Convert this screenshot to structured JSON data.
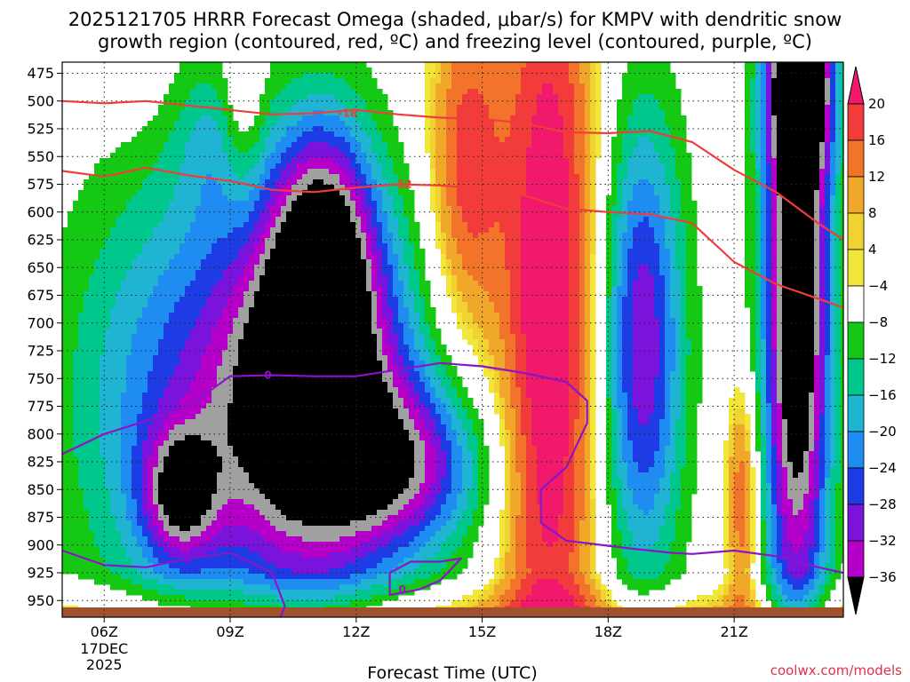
{
  "title_line1": "2025121705 HRRR Forecast Omega (shaded, μbar/s) for KMPV with dendritic snow",
  "title_line2": "growth region (contoured, red, ºC) and freezing level (contoured, purple, ºC)",
  "x_axis_title": "Forecast Time (UTC)",
  "credit": "coolwx.com/models",
  "chart_data": {
    "type": "heatmap",
    "title": "2025121705 HRRR Forecast Omega (shaded, μbar/s) for KMPV with dendritic snow growth region (contoured, red, ºC) and freezing level (contoured, purple, ºC)",
    "xlabel": "Forecast Time (UTC)",
    "ylabel": "",
    "x_hours_range": [
      5,
      23.6
    ],
    "y_levels_hPa": [
      475,
      500,
      525,
      550,
      575,
      600,
      625,
      650,
      675,
      700,
      725,
      750,
      775,
      800,
      825,
      850,
      875,
      900,
      925,
      950
    ],
    "y_range_hPa": [
      465,
      965
    ],
    "x_ticks": [
      {
        "hour": 6,
        "label": "06Z",
        "sublabel1": "17DEC",
        "sublabel2": "2025"
      },
      {
        "hour": 9,
        "label": "09Z"
      },
      {
        "hour": 12,
        "label": "12Z"
      },
      {
        "hour": 15,
        "label": "15Z"
      },
      {
        "hour": 18,
        "label": "18Z"
      },
      {
        "hour": 21,
        "label": "21Z"
      }
    ],
    "grid": true,
    "colorbar": {
      "labels": [
        "20",
        "16",
        "12",
        "8",
        "4",
        "−4",
        "−8",
        "−12",
        "−16",
        "−20",
        "−24",
        "−28",
        "−32",
        "−36"
      ],
      "colors": [
        "#f0196b",
        "#f23c3c",
        "#f2742a",
        "#f0a72a",
        "#f0d330",
        "#f2e63a",
        "#ffffff",
        "#14c814",
        "#00c88c",
        "#1eb4d2",
        "#1e8cf0",
        "#1e3ce6",
        "#7a14dc",
        "#b400c8",
        "#a0a0a0",
        "#000000"
      ]
    },
    "omega_blobs": [
      {
        "name": "early-ascent",
        "x": 7.6,
        "y": 770,
        "rx": 2.6,
        "ry": 210,
        "peak": -18
      },
      {
        "name": "early-ascent-core",
        "x": 7.8,
        "y": 855,
        "rx": 0.9,
        "ry": 60,
        "peak": -24
      },
      {
        "name": "upper-ascent",
        "x": 8.6,
        "y": 530,
        "rx": 1.0,
        "ry": 80,
        "peak": -8
      },
      {
        "name": "main-ascent",
        "x": 11.0,
        "y": 770,
        "rx": 2.3,
        "ry": 175,
        "peak": -46
      },
      {
        "name": "main-ascent-flank",
        "x": 13.3,
        "y": 830,
        "rx": 1.9,
        "ry": 75,
        "peak": -22
      },
      {
        "name": "upper-mid-ascent",
        "x": 11.2,
        "y": 630,
        "rx": 1.2,
        "ry": 120,
        "peak": -28
      },
      {
        "name": "ascent-18z",
        "x": 18.8,
        "y": 720,
        "rx": 1.0,
        "ry": 210,
        "peak": -28
      },
      {
        "name": "ascent-22z",
        "x": 22.5,
        "y": 680,
        "rx": 0.8,
        "ry": 320,
        "peak": -46
      },
      {
        "name": "ascent-22z-top",
        "x": 22.6,
        "y": 480,
        "rx": 0.7,
        "ry": 80,
        "peak": -40
      },
      {
        "name": "descent-16z",
        "x": 16.6,
        "y": 700,
        "rx": 1.2,
        "ry": 420,
        "peak": 26
      },
      {
        "name": "descent-14z",
        "x": 14.6,
        "y": 560,
        "rx": 0.9,
        "ry": 160,
        "peak": 18
      },
      {
        "name": "descent-09z",
        "x": 9.3,
        "y": 500,
        "rx": 0.5,
        "ry": 90,
        "peak": 10
      },
      {
        "name": "descent-20z",
        "x": 21.2,
        "y": 860,
        "rx": 0.4,
        "ry": 110,
        "peak": 16
      },
      {
        "name": "descent-06z",
        "x": 6.0,
        "y": 475,
        "rx": 1.5,
        "ry": 45,
        "peak": 5
      }
    ],
    "dgz_contours": [
      {
        "label": "-18",
        "label_at": [
          11.8,
          511
        ],
        "points": [
          [
            5,
            500
          ],
          [
            6,
            502
          ],
          [
            7,
            500
          ],
          [
            8,
            504
          ],
          [
            9,
            508
          ],
          [
            10,
            512
          ],
          [
            11,
            511
          ],
          [
            12,
            508
          ],
          [
            13,
            512
          ],
          [
            14,
            515
          ],
          [
            15,
            516
          ],
          [
            16,
            520
          ],
          [
            17,
            528
          ],
          [
            18,
            529
          ],
          [
            19,
            527
          ],
          [
            20,
            537
          ],
          [
            21,
            562
          ],
          [
            22,
            582
          ],
          [
            23,
            610
          ],
          [
            23.6,
            625
          ]
        ]
      },
      {
        "label": "-12",
        "label_at": [
          13.1,
          575
        ],
        "points": [
          [
            5,
            563
          ],
          [
            6,
            568
          ],
          [
            7,
            560
          ],
          [
            8,
            567
          ],
          [
            9,
            572
          ],
          [
            10,
            580
          ],
          [
            11,
            582
          ],
          [
            12,
            578
          ],
          [
            13,
            575
          ],
          [
            14,
            576
          ],
          [
            15,
            579
          ],
          [
            16,
            585
          ],
          [
            17,
            597
          ],
          [
            18,
            600
          ],
          [
            19,
            602
          ],
          [
            20,
            610
          ],
          [
            21,
            645
          ],
          [
            22,
            665
          ],
          [
            23,
            678
          ],
          [
            23.6,
            686
          ]
        ]
      }
    ],
    "freezing_level_contours": [
      {
        "label": "0",
        "label_at": [
          9.9,
          747
        ],
        "points": [
          [
            5,
            818
          ],
          [
            6,
            800
          ],
          [
            7,
            788
          ],
          [
            8,
            775
          ],
          [
            9,
            748
          ],
          [
            10,
            747
          ],
          [
            11,
            748
          ],
          [
            12,
            748
          ],
          [
            13,
            742
          ],
          [
            14,
            736
          ],
          [
            15,
            739
          ],
          [
            16,
            745
          ],
          [
            17,
            753
          ],
          [
            17.5,
            770
          ],
          [
            17.5,
            790
          ],
          [
            17.0,
            830
          ],
          [
            16.4,
            850
          ],
          [
            16.4,
            880
          ],
          [
            17.0,
            896
          ],
          [
            18.5,
            903
          ],
          [
            19.5,
            907
          ],
          [
            20,
            908
          ],
          [
            21,
            905
          ],
          [
            22,
            910
          ],
          [
            23,
            920
          ],
          [
            23.6,
            925
          ]
        ]
      },
      {
        "label": "0",
        "label_at": [
          13.1,
          940
        ],
        "points": [
          [
            12.8,
            925
          ],
          [
            13.3,
            915
          ],
          [
            14.0,
            915
          ],
          [
            14.5,
            912
          ],
          [
            14.0,
            932
          ],
          [
            13.5,
            940
          ],
          [
            12.8,
            945
          ],
          [
            12.8,
            925
          ]
        ]
      },
      {
        "label": "",
        "label_at": null,
        "points": [
          [
            5,
            905
          ],
          [
            6,
            918
          ],
          [
            7,
            920
          ],
          [
            8,
            912
          ],
          [
            9,
            907
          ],
          [
            10,
            925
          ],
          [
            10.3,
            955
          ],
          [
            10.2,
            965
          ]
        ]
      }
    ]
  }
}
